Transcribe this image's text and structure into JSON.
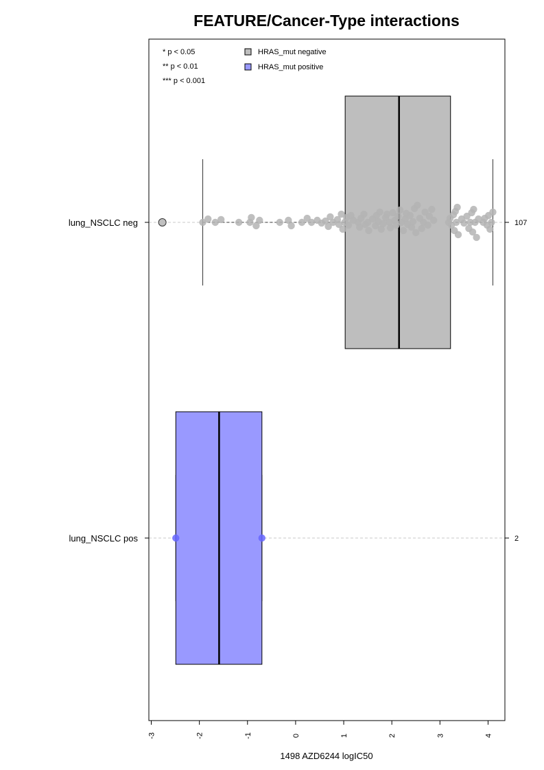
{
  "chart_data": {
    "type": "box",
    "orientation": "horizontal",
    "title": "FEATURE/Cancer-Type interactions",
    "xlabel": "1498 AZD6244 logIC50",
    "xlim": [
      -3.05,
      4.35
    ],
    "x_ticks": [
      -3,
      -2,
      -1,
      0,
      1,
      2,
      3,
      4
    ],
    "x_tick_labels": [
      "-3",
      "-2",
      "-1",
      "0",
      "1",
      "2",
      "3",
      "4"
    ],
    "grid": false,
    "significance_legend": [
      "* p < 0.05",
      "** p < 0.01",
      "*** p < 0.001"
    ],
    "legend": {
      "placement": "top",
      "entries": [
        {
          "label": "HRAS_mut negative",
          "color": "#bebebe"
        },
        {
          "label": "HRAS_mut positive",
          "color": "#9999ff"
        }
      ]
    },
    "groups": [
      {
        "label": "lung_NSCLC neg",
        "count_label": "107",
        "color": "#bebebe",
        "point_color": "#b4b4b4",
        "q1": 1.03,
        "median": 2.15,
        "q3": 3.22,
        "whisker_low": -1.93,
        "whisker_high": 4.1,
        "outliers": [
          -2.77
        ],
        "points": [
          [
            -1.93,
            0.0
          ],
          [
            -1.82,
            0.38
          ],
          [
            -1.67,
            0.0
          ],
          [
            -1.55,
            0.31
          ],
          [
            -1.18,
            0.0
          ],
          [
            -0.95,
            0.0
          ],
          [
            -0.92,
            0.54
          ],
          [
            -0.82,
            -0.38
          ],
          [
            -0.75,
            0.23
          ],
          [
            -0.33,
            0.0
          ],
          [
            -0.15,
            0.23
          ],
          [
            -0.09,
            -0.38
          ],
          [
            0.13,
            0.0
          ],
          [
            0.24,
            0.46
          ],
          [
            0.33,
            0.0
          ],
          [
            0.45,
            0.23
          ],
          [
            0.54,
            -0.08
          ],
          [
            0.62,
            0.15
          ],
          [
            0.68,
            -0.46
          ],
          [
            0.72,
            0.62
          ],
          [
            0.78,
            0.0
          ],
          [
            0.87,
            0.31
          ],
          [
            0.9,
            -0.23
          ],
          [
            0.95,
            0.92
          ],
          [
            0.98,
            -0.77
          ],
          [
            1.02,
            0.0
          ],
          [
            1.06,
            0.54
          ],
          [
            1.1,
            -0.31
          ],
          [
            1.15,
            0.77
          ],
          [
            1.2,
            0.23
          ],
          [
            1.3,
            0.0
          ],
          [
            1.33,
            -0.54
          ],
          [
            1.36,
            0.46
          ],
          [
            1.42,
            0.92
          ],
          [
            1.45,
            -0.23
          ],
          [
            1.5,
            0.0
          ],
          [
            1.52,
            -0.92
          ],
          [
            1.6,
            0.38
          ],
          [
            1.66,
            -0.38
          ],
          [
            1.68,
            0.77
          ],
          [
            1.72,
            0.08
          ],
          [
            1.75,
            1.15
          ],
          [
            1.78,
            -0.77
          ],
          [
            1.82,
            -0.15
          ],
          [
            1.87,
            0.54
          ],
          [
            1.9,
            0.92
          ],
          [
            1.95,
            0.0
          ],
          [
            1.97,
            -0.62
          ],
          [
            2.02,
            1.08
          ],
          [
            2.06,
            0.23
          ],
          [
            2.09,
            -0.31
          ],
          [
            2.13,
            0.69
          ],
          [
            2.17,
            1.38
          ],
          [
            2.2,
            0.0
          ],
          [
            2.24,
            -0.92
          ],
          [
            2.28,
            0.38
          ],
          [
            2.3,
            1.0
          ],
          [
            2.33,
            -0.23
          ],
          [
            2.38,
            0.77
          ],
          [
            2.41,
            -0.54
          ],
          [
            2.44,
            0.08
          ],
          [
            2.47,
            1.54
          ],
          [
            2.5,
            -1.15
          ],
          [
            2.53,
            1.92
          ],
          [
            2.58,
            0.46
          ],
          [
            2.62,
            -0.69
          ],
          [
            2.66,
            0.0
          ],
          [
            2.69,
            1.15
          ],
          [
            2.75,
            -0.31
          ],
          [
            2.78,
            0.69
          ],
          [
            2.83,
            1.46
          ],
          [
            2.87,
            0.23
          ],
          [
            3.18,
            0.0
          ],
          [
            3.21,
            0.46
          ],
          [
            3.24,
            -0.31
          ],
          [
            3.28,
            0.85
          ],
          [
            3.3,
            -0.92
          ],
          [
            3.32,
            1.23
          ],
          [
            3.34,
            0.0
          ],
          [
            3.36,
            1.69
          ],
          [
            3.38,
            -1.38
          ],
          [
            3.45,
            0.38
          ],
          [
            3.5,
            -0.08
          ],
          [
            3.56,
            0.69
          ],
          [
            3.6,
            -0.69
          ],
          [
            3.63,
            0.0
          ],
          [
            3.66,
            1.08
          ],
          [
            3.68,
            -1.08
          ],
          [
            3.7,
            1.46
          ],
          [
            3.73,
            0.0
          ],
          [
            3.76,
            -1.69
          ],
          [
            3.8,
            0.38
          ],
          [
            3.9,
            0.0
          ],
          [
            3.93,
            0.46
          ],
          [
            3.98,
            -0.31
          ],
          [
            4.01,
            0.77
          ],
          [
            4.04,
            -0.77
          ],
          [
            4.07,
            0.0
          ],
          [
            4.1,
            1.15
          ]
        ]
      },
      {
        "label": "lung_NSCLC pos",
        "count_label": "2",
        "color": "#9999ff",
        "point_color": "#6666ff",
        "q1": -2.49,
        "median": -1.59,
        "q3": -0.7,
        "whisker_low": -2.49,
        "whisker_high": -0.7,
        "outliers": [],
        "points": [
          [
            -2.49,
            0.0
          ],
          [
            -0.7,
            0.0
          ]
        ]
      }
    ]
  }
}
